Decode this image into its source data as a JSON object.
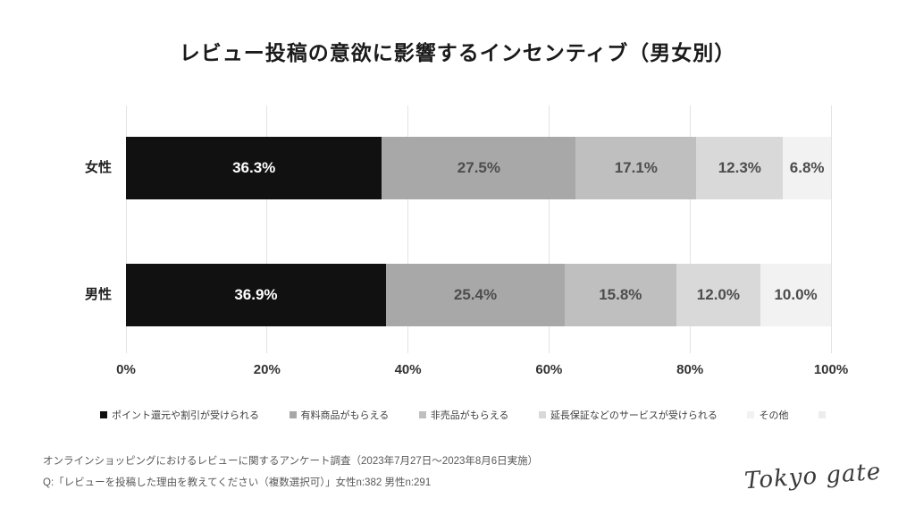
{
  "title": "レビュー投稿の意欲に影響するインセンティブ（男女別）",
  "colors": {
    "background": "#ffffff",
    "title_text": "#1a1a1a",
    "grid_line": "#e3e3e3",
    "axis_text": "#333333",
    "category_text": "#222222",
    "legend_text": "#404040",
    "footer_text": "#595959",
    "logo_text": "#3a3a3a"
  },
  "chart_data": {
    "type": "bar",
    "orientation": "horizontal-stacked",
    "title": "レビュー投稿の意欲に影響するインセンティブ（男女別）",
    "categories": [
      "女性",
      "男性"
    ],
    "series": [
      {
        "name": "ポイント還元や割引が受けられる",
        "color": "#111111",
        "label_color": "#ffffff",
        "values": [
          36.3,
          36.9
        ]
      },
      {
        "name": "有料商品がもらえる",
        "color": "#a8a8a8",
        "label_color": "#4d4d4d",
        "values": [
          27.5,
          25.4
        ]
      },
      {
        "name": "非売品がもらえる",
        "color": "#bfbfbf",
        "label_color": "#4d4d4d",
        "values": [
          17.1,
          15.8
        ]
      },
      {
        "name": "延長保証などのサービスが受けられる",
        "color": "#d9d9d9",
        "label_color": "#4d4d4d",
        "values": [
          12.3,
          12.0
        ]
      },
      {
        "name": "その他",
        "color": "#f2f2f2",
        "label_color": "#4d4d4d",
        "values": [
          6.8,
          10.0
        ]
      },
      {
        "name": "",
        "color": "#ededed",
        "label_color": "#4d4d4d",
        "values": [
          0,
          0
        ]
      }
    ],
    "value_suffix": "%",
    "value_decimals": 1,
    "x_ticks": [
      "0%",
      "20%",
      "40%",
      "60%",
      "80%",
      "100%"
    ],
    "xlim": [
      0,
      100
    ],
    "grid": true,
    "legend_position": "bottom"
  },
  "footer": {
    "line1": "オンラインショッピングにおけるレビューに関するアンケート調査（2023年7月27日～2023年8月6日実施）",
    "line2": "Q:「レビューを投稿した理由を教えてください（複数選択可）」女性n:382 男性n:291"
  },
  "logo_text": "Tokyo gate"
}
